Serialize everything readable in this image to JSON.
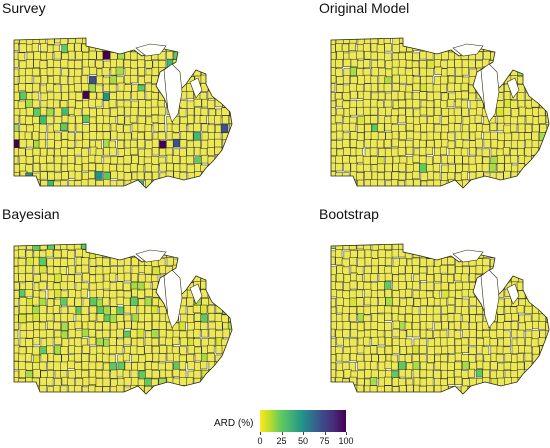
{
  "panels": [
    {
      "title": "Survey",
      "variant": "survey"
    },
    {
      "title": "Original Model",
      "variant": "original"
    },
    {
      "title": "Bayesian",
      "variant": "bayesian"
    },
    {
      "title": "Bootstrap",
      "variant": "bootstrap"
    }
  ],
  "legend": {
    "title": "ARD (%)",
    "ticks": [
      "0",
      "25",
      "50",
      "75",
      "100"
    ],
    "min": 0,
    "max": 100
  },
  "colors": {
    "base": "#ece85a",
    "border": "#2b2b12",
    "water": "#ffffff",
    "scale": [
      "#fde725",
      "#5ec962",
      "#21918c",
      "#3b528b",
      "#440154"
    ]
  }
}
